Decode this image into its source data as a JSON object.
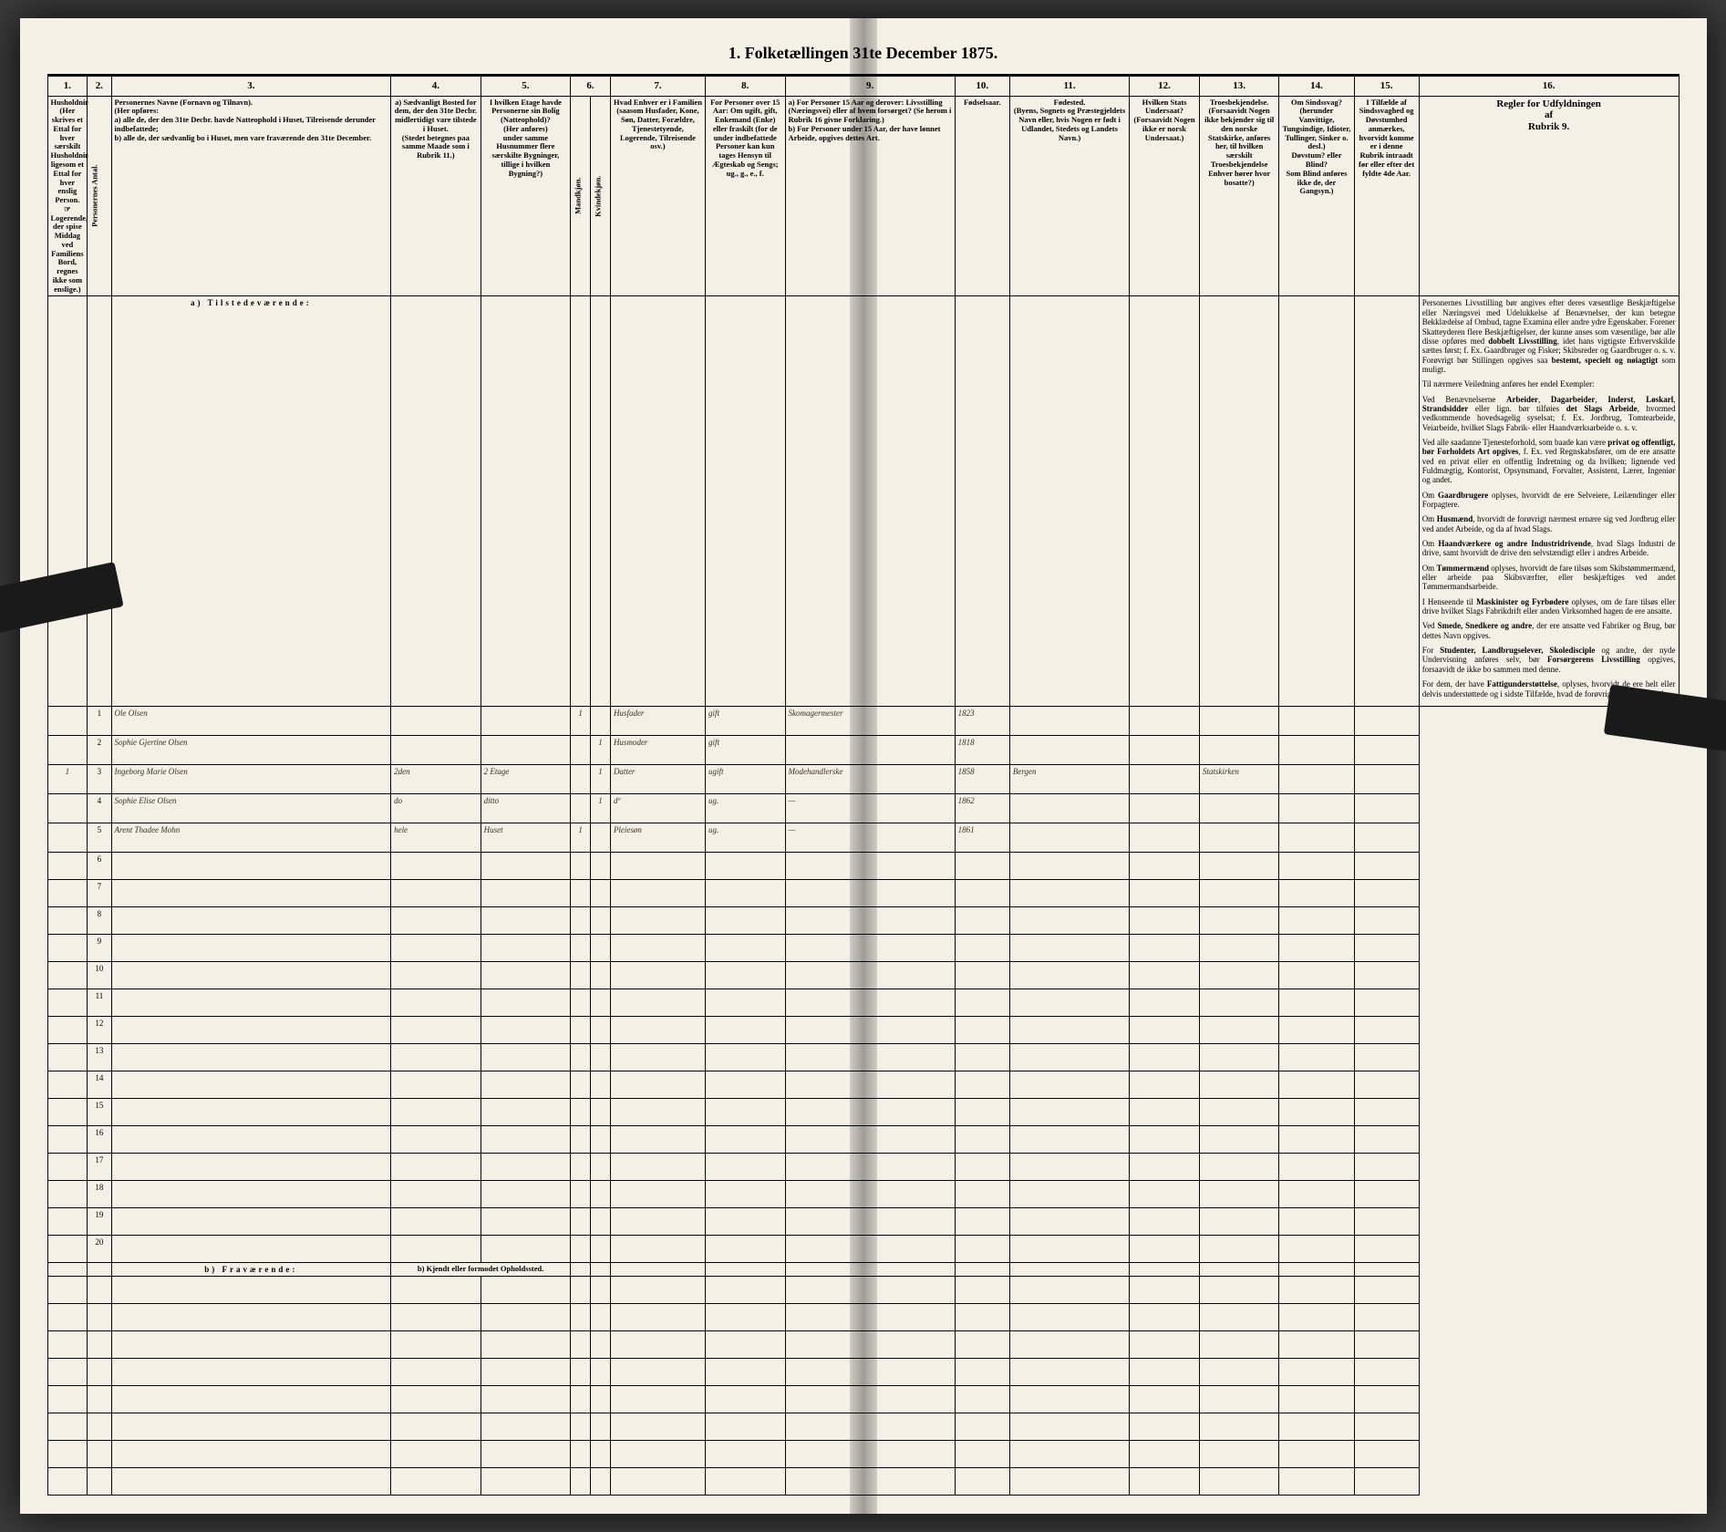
{
  "title": "1.  Folketællingen 31te December 1875.",
  "columns": {
    "c1": {
      "num": "1.",
      "label": "Husholdningernes\n(Her skrives et Ettal for hver særskilt Husholdning; ligesom et Ettal for hver enslig Person.\n☞ Logerende, der spise Middag ved Familiens Bord, regnes ikke som enslige.)"
    },
    "c2": {
      "num": "2.",
      "label": "Personernes Antal."
    },
    "c3": {
      "num": "3.",
      "label": "Personernes Navne (Fornavn og Tilnavn).\n(Her opføres:\na) alle de, der den 31te Decbr. havde Natteophold i Huset, Tilreisende derunder indbefattede;\nb) alle de, der sædvanlig bo i Huset, men vare fraværende den 31te December."
    },
    "c4": {
      "num": "4.",
      "label": "a) Sædvanligt Bosted for dem, der den 31te Decbr. midlertidigt vare tilstede i Huset.\n(Stedet betegnes paa samme Maade som i Rubrik 11.)"
    },
    "c5": {
      "num": "5.",
      "label": "I hvilken Etage havde Personerne sin Bolig (Natteophold)?\n(Her anføres)\nunder samme Husnummer flere særskilte Bygninger, tillige i hvilken Bygning?)"
    },
    "c6": {
      "num": "6.",
      "label": "Kjøn.\n(Her sættes et Ettal i vedkommende Rubrik.)"
    },
    "c6a": {
      "label": "Mandkjøn."
    },
    "c6b": {
      "label": "Kvindekjøn."
    },
    "c7": {
      "num": "7.",
      "label": "Hvad Enhver er i Familien\n(saasom Husfader, Kone, Søn, Datter, Forældre, Tjenestetyende, Logerende, Tilreisende osv.)"
    },
    "c8": {
      "num": "8.",
      "label": "For Personer over 15 Aar: Om ugift, gift, Enkemand (Enke) eller fraskilt (for de under indbefattede Personer kan kun tages Hensyn til Ægteskab og Sengs; ug., g., e., f."
    },
    "c9": {
      "num": "9.",
      "label": "a) For Personer 15 Aar og derover: Livsstilling (Næringsvei) eller af hvem forsørget? (Se herom i Rubrik 16 givne Forklaring.)\nb) For Personer under 15 Aar, der have lønnet Arbeide, opgives dettes Art."
    },
    "c10": {
      "num": "10.",
      "label": "Fødselsaar."
    },
    "c11": {
      "num": "11.",
      "label": "Fødested.\n(Byens, Sognets og Præstegjeldets Navn eller, hvis Nogen er født i Udlandet, Stedets og Landets Navn.)"
    },
    "c12": {
      "num": "12.",
      "label": "Hvilken Stats Undersaat?\n(Forsaavidt Nogen ikke er norsk Undersaat.)"
    },
    "c13": {
      "num": "13.",
      "label": "Troesbekjendelse.\n(Forsaavidt Nogen ikke bekjender sig til den norske Statskirke, anføres her, til hvilken særskilt Troesbekjendelse Enhver hører hvor bosatte?)"
    },
    "c14": {
      "num": "14.",
      "label": "Om Sindssvag?\n(herunder Vanvittige, Tungsindige, Idioter, Tullinger, Sinker o. desl.)\nDøvstum? eller Blind?\nSom Blind anføres ikke de, der Gangsyn.)"
    },
    "c15": {
      "num": "15.",
      "label": "I Tilfælde af Sindssvaghed og Døvstumhed anmærkes, hvorvidt komme er i denne Rubrik intraadt før eller efter det fyldte 4de Aar."
    },
    "c16": {
      "num": "16.",
      "label": "Regler for Udfyldningen\naf\nRubrik 9."
    }
  },
  "section_present": "a)  Tilstedeværende:",
  "section_absent": "b)  Fraværende:",
  "absent_col4": "b) Kjendt eller formodet Opholdssted.",
  "household_no": "1",
  "rows": [
    {
      "n": "1",
      "name": "Ole Olsen",
      "col4": "",
      "col5": "",
      "m": "1",
      "k": "",
      "fam": "Husfader",
      "stat": "gift",
      "occ": "Skomagermester",
      "yr": "1823",
      "place": "",
      "c12": "",
      "c13": "",
      "c14": "",
      "c15": ""
    },
    {
      "n": "2",
      "name": "Sophie Gjertine Olsen",
      "col4": "",
      "col5": "",
      "m": "",
      "k": "1",
      "fam": "Husmoder",
      "stat": "gift",
      "occ": "",
      "yr": "1818",
      "place": "",
      "c12": "",
      "c13": "",
      "c14": "",
      "c15": ""
    },
    {
      "n": "3",
      "name": "Ingeborg Marie Olsen",
      "col4": "2den",
      "col5": "2 Etage",
      "m": "",
      "k": "1",
      "fam": "Datter",
      "stat": "ugift",
      "occ": "Modehandlerske",
      "yr": "1858",
      "place": "Bergen",
      "c12": "",
      "c13": "Statskirken",
      "c14": "",
      "c15": ""
    },
    {
      "n": "4",
      "name": "Sophie Elise Olsen",
      "col4": "do",
      "col5": "ditto",
      "m": "",
      "k": "1",
      "fam": "dº",
      "stat": "ug.",
      "occ": "—",
      "yr": "1862",
      "place": "",
      "c12": "",
      "c13": "",
      "c14": "",
      "c15": ""
    },
    {
      "n": "5",
      "name": "Arent Thadee Mohn",
      "col4": "hele",
      "col5": "Huset",
      "m": "1",
      "k": "",
      "fam": "Pleiesøn",
      "stat": "ug.",
      "occ": "—",
      "yr": "1861",
      "place": "",
      "c12": "",
      "c13": "",
      "c14": "",
      "c15": ""
    }
  ],
  "empty_present": [
    "6",
    "7",
    "8",
    "9",
    "10",
    "11",
    "12",
    "13",
    "14",
    "15",
    "16",
    "17",
    "18",
    "19",
    "20"
  ],
  "empty_absent_count": 8,
  "instructions": "Personernes Livsstilling bør angives efter deres væsentlige Beskjæftigelse eller Næringsvei med Udelukkelse af Benævnelser, der kun betegne Bekklædelse af Ombud, tagne Examina eller andre ydre Egenskaber. Forener Skatteyderen flere Beskjæftigelser, der kunne anses som væsentlige, bør alle disse opføres med <b>dobbelt Livsstilling</b>, idet hans vigtigste Erhvervskilde sættes først; f. Ex. Gaardbruger og Fisker; Skibsreder og Gaardbruger o. s. v. Forøvrigt bør Stillingen opgives saa <b>bestemt, specielt og nøiagtigt</b> som muligt.\n\nTil nærmere Veiledning anføres her endel Exempler:\n\nVed Benævnelserne <b>Arbeider</b>, <b>Dagarbeider</b>, <b>Inderst</b>, <b>Løskarl</b>, <b>Strandsidder</b> eller lign. bør tilføies <b>det Slags Arbeide</b>, hvormed vedkommende hovedsagelig syselsat; f. Ex. Jordbrug, Tomtearbeide, Veiarbeide, hvilket Slags Fabrik- eller Haandværksarbeide o. s. v.\n\nVed alle saadanne Tjenesteforhold, som baade kan være <b>privat og offentligt, bør Forholdets Art opgives</b>, f. Ex. ved Regnskabsfører, om de ere ansatte ved en privat eller en offentlig Indretning og da hvilken; lignende ved Fuldmægtig, Kontorist, Opsynsmand, Forvalter, Assistent, Lærer, Ingeniør og andet.\n\nOm <b>Gaardbrugere</b> oplyses, hvorvidt de ere Selveiere, Leilændinger eller Forpagtere.\n\nOm <b>Husmænd</b>, hvorvidt de forøvrigt nærmest ernære sig ved Jordbrug eller ved andet Arbeide, og da af hvad Slags.\n\nOm <b>Haandværkere og andre Industridrivende</b>, hvad Slags Industri de drive, samt hvorvidt de drive den selvstændigt eller i andres Arbeide.\n\nOm <b>Tømmermænd</b> oplyses, hvorvidt de fare tilsøs som Skibstømmermænd, eller arbeide paa Skibsværfter, eller beskjæftiges ved andet Tømmermandsarbeide.\n\nI Henseende til <b>Maskinister og Fyrbødere</b> oplyses, om de fare tilsøs eller drive hvilket Slags Fabrikdrift eller anden Virksomhed hagen de ere ansatte.\n\nVed <b>Smede, Snedkere og andre</b>, der ere ansatte ved Fabriker og Brug, bør dettes Navn opgives.\n\nFor <b>Studenter, Landbrugselever, Skoledisciple</b> og andre, der nyde Undervisning anføres selv, bør <b>Forsørgerens Livsstilling</b> opgives, forsaavidt de ikke bo sammen med denne.\n\nFor dem, der have <b>Fattigunderstøttelse</b>, oplyses, hvorvidt de ere helt eller delvis understøttede og i sidste Tilfælde, hvad de forøvrigt ernære sig ved."
}
